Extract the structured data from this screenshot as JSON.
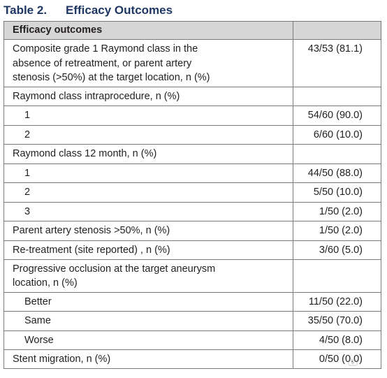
{
  "title": {
    "number": "Table 2.",
    "text": "Efficacy Outcomes"
  },
  "header": {
    "col1": "Efficacy outcomes",
    "col2": ""
  },
  "rows": [
    {
      "label": "Composite grade 1 Raymond class in the\nabsence of retreatment, or parent artery\nstenosis (>50%) at the target location, n (%)",
      "value": "43/53 (81.1)",
      "indent": false,
      "h": 58
    },
    {
      "label": "Raymond class intraprocedure, n (%)",
      "value": "",
      "indent": false,
      "h": 27
    },
    {
      "label": "1",
      "value": "54/60 (90.0)",
      "indent": true,
      "h": 28
    },
    {
      "label": "2",
      "value": "6/60 (10.0)",
      "indent": true,
      "h": 27
    },
    {
      "label": "Raymond class 12 month, n (%)",
      "value": "",
      "indent": false,
      "h": 28
    },
    {
      "label": "1",
      "value": "44/50 (88.0)",
      "indent": true,
      "h": 27
    },
    {
      "label": "2",
      "value": "5/50 (10.0)",
      "indent": true,
      "h": 28
    },
    {
      "label": "3",
      "value": "1/50 (2.0)",
      "indent": true,
      "h": 27
    },
    {
      "label": "Parent artery stenosis >50%, n (%)",
      "value": "1/50 (2.0)",
      "indent": false,
      "h": 28
    },
    {
      "label": "Re-treatment (site reported) , n (%)",
      "value": "3/60 (5.0)",
      "indent": false,
      "h": 27
    },
    {
      "label": "Progressive occlusion at the target aneurysm\nlocation, n (%)",
      "value": "",
      "indent": false,
      "h": 45
    },
    {
      "label": "Better",
      "value": "11/50 (22.0)",
      "indent": true,
      "h": 27
    },
    {
      "label": "Same",
      "value": "35/50 (70.0)",
      "indent": true,
      "h": 28
    },
    {
      "label": "Worse",
      "value": "4/50 (8.0)",
      "indent": true,
      "h": 27
    },
    {
      "label": "Stent migration, n (%)",
      "value": "0/50 (0.0)",
      "indent": false,
      "h": 27
    }
  ]
}
